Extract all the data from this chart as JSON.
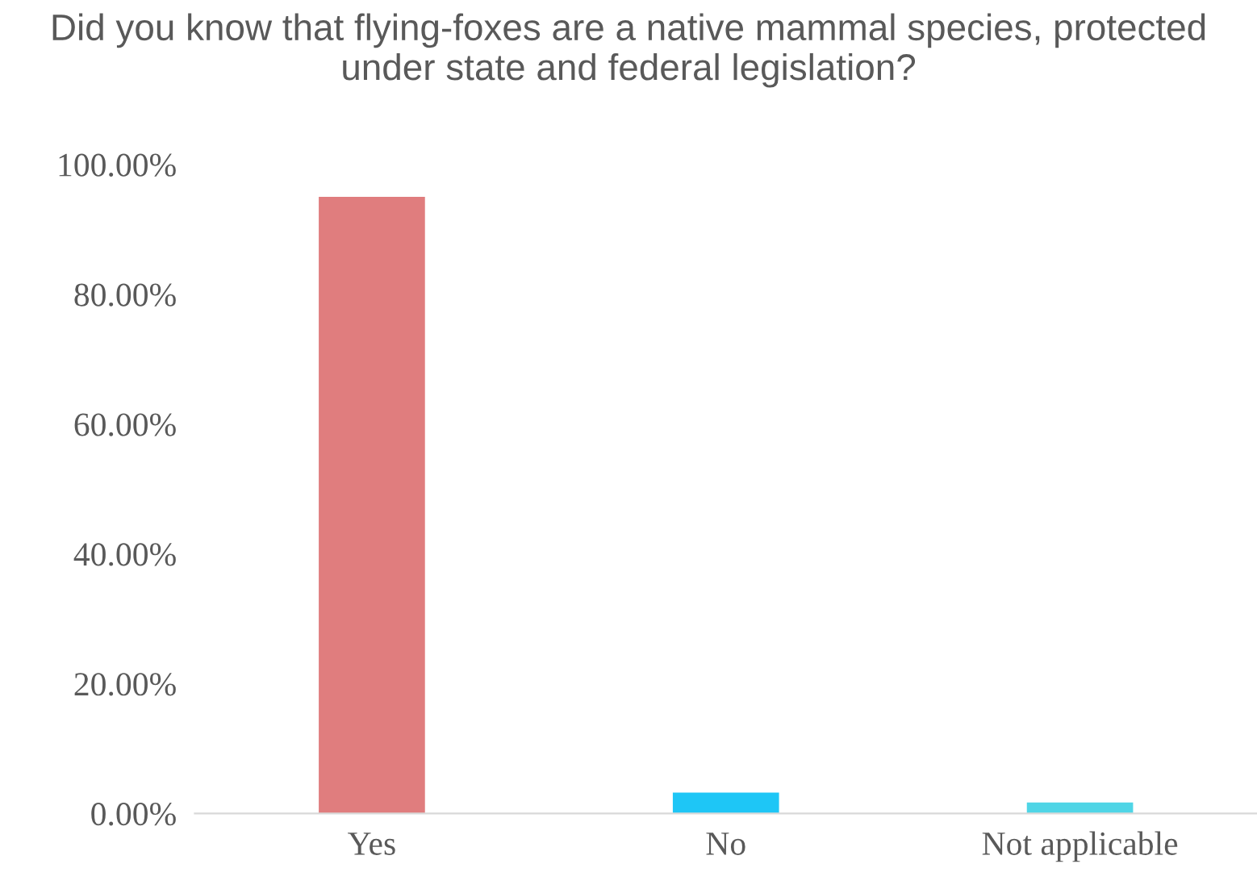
{
  "chart_data": {
    "type": "bar",
    "title": "Did you know that flying-foxes are a native mammal species, protected under state and federal legislation?",
    "categories": [
      "Yes",
      "No",
      "Not applicable"
    ],
    "values": [
      95.0,
      3.2,
      1.7
    ],
    "colors": [
      "#e07d7e",
      "#1ec6f6",
      "#4fd5e6"
    ],
    "ylim": [
      0,
      100
    ],
    "yticks": [
      {
        "value": 0,
        "label": "0.00%"
      },
      {
        "value": 20,
        "label": "20.00%"
      },
      {
        "value": 40,
        "label": "40.00%"
      },
      {
        "value": 60,
        "label": "60.00%"
      },
      {
        "value": 80,
        "label": "80.00%"
      },
      {
        "value": 100,
        "label": "100.00%"
      }
    ],
    "grid": false,
    "legend": false
  }
}
